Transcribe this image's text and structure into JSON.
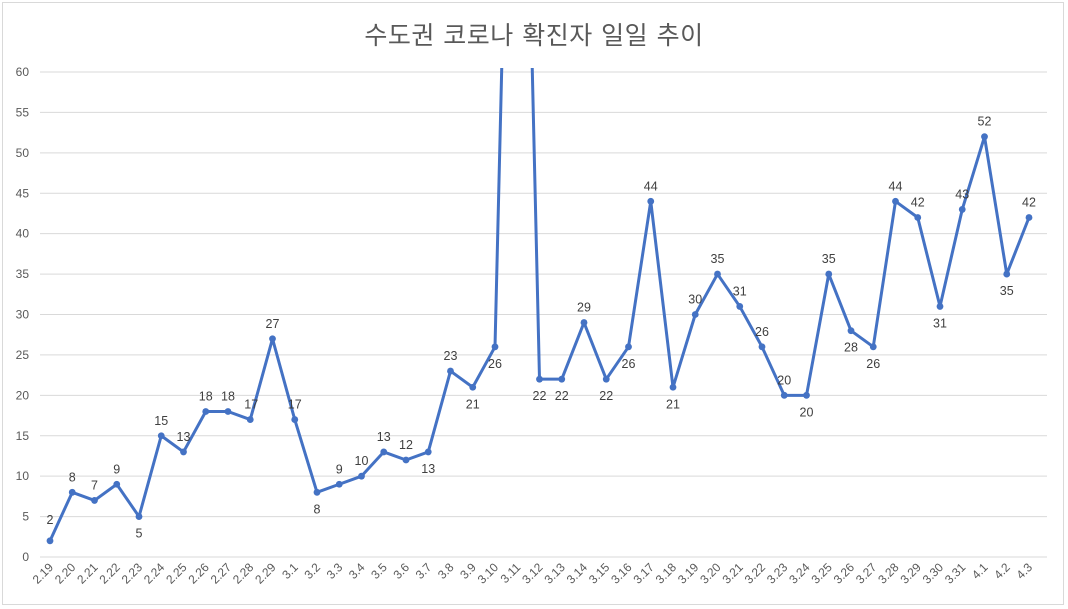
{
  "chart_data": {
    "type": "line",
    "title": "수도권 코로나 확진자 일일 추이",
    "xlabel": "",
    "ylabel": "",
    "ylim": [
      0,
      60
    ],
    "yticks": [
      0,
      5,
      10,
      15,
      20,
      25,
      30,
      35,
      40,
      45,
      50,
      55,
      60
    ],
    "grid": true,
    "legend": "none",
    "colors": {
      "series": "#4472C4",
      "grid": "#D9D9D9",
      "text": "#595959"
    },
    "categories": [
      "2.19",
      "2.20",
      "2.21",
      "2.22",
      "2.23",
      "2.24",
      "2.25",
      "2.26",
      "2.27",
      "2.28",
      "2.29",
      "3.1",
      "3.2",
      "3.3",
      "3.4",
      "3.5",
      "3.6",
      "3.7",
      "3.8",
      "3.9",
      "3.10",
      "3.11",
      "3.12",
      "3.13",
      "3.14",
      "3.15",
      "3.16",
      "3.17",
      "3.18",
      "3.19",
      "3.20",
      "3.21",
      "3.22",
      "3.23",
      "3.24",
      "3.25",
      "3.26",
      "3.27",
      "3.28",
      "3.29",
      "3.30",
      "3.31",
      "4.1",
      "4.2",
      "4.3"
    ],
    "series": [
      {
        "values": [
          2,
          8,
          7,
          9,
          5,
          15,
          13,
          18,
          18,
          17,
          27,
          17,
          8,
          9,
          10,
          13,
          12,
          13,
          23,
          21,
          26,
          null,
          22,
          22,
          29,
          22,
          26,
          44,
          21,
          30,
          35,
          31,
          26,
          20,
          20,
          35,
          28,
          26,
          44,
          42,
          31,
          43,
          52,
          35,
          42
        ],
        "labels": [
          "2",
          "8",
          "7",
          "9",
          "5",
          "15",
          "13",
          "18",
          "18",
          "17",
          "27",
          "17",
          "8",
          "9",
          "10",
          "13",
          "12",
          "13",
          "23",
          "21",
          "26",
          "",
          "22",
          "22",
          "29",
          "22",
          "26",
          "44",
          "21",
          "30",
          "35",
          "31",
          "26",
          "20",
          "20",
          "35",
          "28",
          "26",
          "44",
          "42",
          "31",
          "43",
          "52",
          "35",
          "42"
        ]
      }
    ],
    "notes": "3.11 value exceeds the axis maximum of 60 and is clipped at the top of the plot; its data label is not visible."
  }
}
